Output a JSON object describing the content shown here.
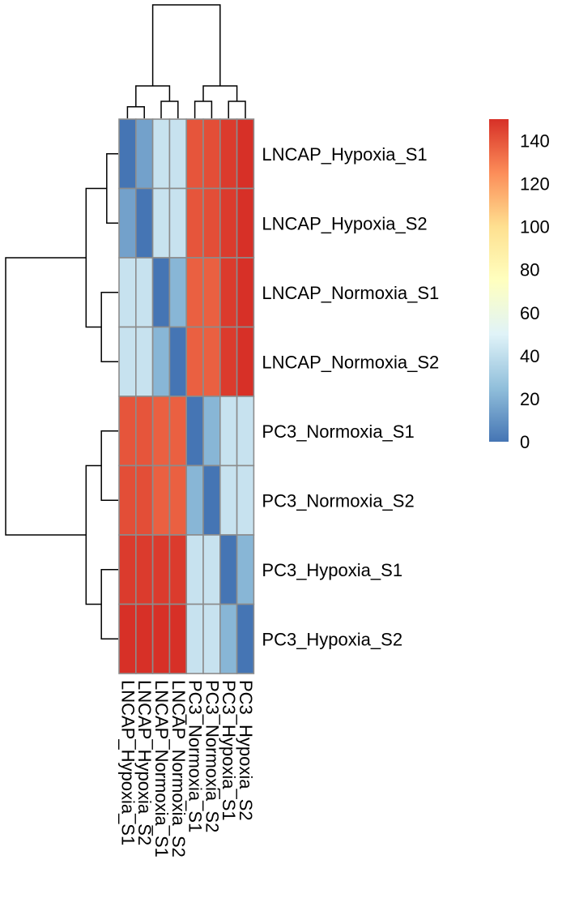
{
  "chart_data": {
    "type": "heatmap",
    "rows": [
      "LNCAP_Hypoxia_S1",
      "LNCAP_Hypoxia_S2",
      "LNCAP_Normoxia_S1",
      "LNCAP_Normoxia_S2",
      "PC3_Normoxia_S1",
      "PC3_Normoxia_S2",
      "PC3_Hypoxia_S1",
      "PC3_Hypoxia_S2"
    ],
    "columns": [
      "LNCAP_Hypoxia_S1",
      "LNCAP_Hypoxia_S2",
      "LNCAP_Normoxia_S1",
      "LNCAP_Normoxia_S2",
      "PC3_Normoxia_S1",
      "PC3_Normoxia_S2",
      "PC3_Hypoxia_S1",
      "PC3_Hypoxia_S2"
    ],
    "values": [
      [
        0,
        15,
        42,
        42,
        140,
        142,
        147,
        150
      ],
      [
        15,
        0,
        42,
        42,
        140,
        142,
        147,
        150
      ],
      [
        42,
        42,
        0,
        22,
        137,
        137,
        147,
        150
      ],
      [
        42,
        42,
        22,
        0,
        137,
        137,
        147,
        150
      ],
      [
        140,
        140,
        137,
        137,
        0,
        22,
        42,
        42
      ],
      [
        142,
        142,
        137,
        137,
        22,
        0,
        42,
        42
      ],
      [
        147,
        147,
        147,
        147,
        42,
        42,
        0,
        22
      ],
      [
        150,
        150,
        150,
        150,
        42,
        42,
        22,
        0
      ]
    ],
    "dendrogram_merges": [
      [
        1,
        2
      ],
      [
        3,
        4
      ],
      [
        5,
        6
      ],
      [
        7,
        8
      ],
      [
        -1,
        -2
      ],
      [
        -3,
        -4
      ],
      [
        -5,
        -6
      ]
    ],
    "dendrogram_heights": [
      15,
      22,
      22,
      22,
      42,
      42,
      147
    ],
    "colorbar": {
      "min": 0,
      "max": 150,
      "ticks": [
        0,
        20,
        40,
        60,
        80,
        100,
        120,
        140
      ],
      "colors": [
        "#4575B4",
        "#91BFDB",
        "#E0F3F8",
        "#FFFFBF",
        "#FEE090",
        "#FC8D59",
        "#D73027"
      ]
    }
  }
}
